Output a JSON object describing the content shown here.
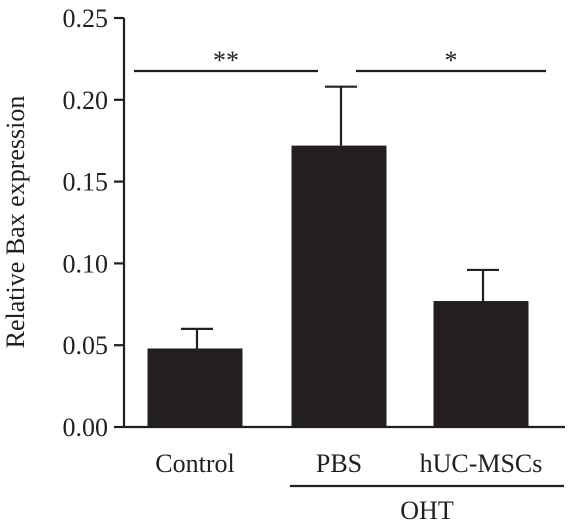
{
  "chart_data": {
    "type": "bar",
    "title": "",
    "xlabel": "",
    "ylabel": "Relative Bax expression",
    "ylim": [
      0,
      0.25
    ],
    "yticks": [
      "0.00",
      "0.05",
      "0.10",
      "0.15",
      "0.20",
      "0.25"
    ],
    "categories": [
      "Control",
      "PBS",
      "hUC-MSCs"
    ],
    "values": [
      0.048,
      0.172,
      0.077
    ],
    "error": [
      0.012,
      0.036,
      0.019
    ],
    "bar_color": "#231f20",
    "group": {
      "label": "OHT",
      "spans": [
        "PBS",
        "hUC-MSCs"
      ]
    },
    "significance": [
      {
        "from": "Control",
        "to": "PBS",
        "label": "**"
      },
      {
        "from": "PBS",
        "to": "hUC-MSCs",
        "label": "*"
      }
    ],
    "grid": false,
    "legend": "none"
  }
}
